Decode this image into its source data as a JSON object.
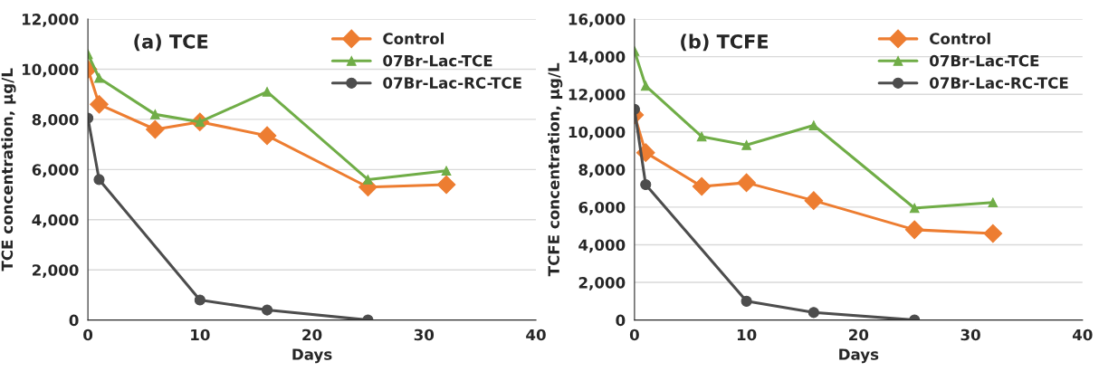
{
  "chart_data": [
    {
      "type": "line",
      "title": "(a) TCE",
      "xlabel": "Days",
      "ylabel": "TCE concentration, µg/L",
      "xlim": [
        0,
        40
      ],
      "xticks": [
        0,
        10,
        20,
        30,
        40
      ],
      "ylim": [
        0,
        12000
      ],
      "yticks": [
        {
          "value": 0,
          "label": "0"
        },
        {
          "value": 2000,
          "label": "2,000"
        },
        {
          "value": 4000,
          "label": "4,000"
        },
        {
          "value": 6000,
          "label": "6,000"
        },
        {
          "value": 8000,
          "label": "8,000"
        },
        {
          "value": 10000,
          "label": "10,000"
        },
        {
          "value": 12000,
          "label": "12,000"
        }
      ],
      "grid": "y",
      "legend": "top right",
      "line_style": "solid",
      "series": [
        {
          "name": "Control",
          "color": "#ed7d31",
          "marker": "diamond",
          "x": [
            0,
            1,
            6,
            10,
            16,
            25,
            32
          ],
          "values": [
            10000,
            8600,
            7600,
            7900,
            7350,
            5300,
            5400
          ]
        },
        {
          "name": "07Br-Lac-TCE",
          "color": "#70ad47",
          "marker": "triangle",
          "x": [
            0,
            1,
            6,
            10,
            16,
            25,
            32
          ],
          "values": [
            10600,
            9650,
            8200,
            7900,
            9100,
            5600,
            5950
          ]
        },
        {
          "name": "07Br-Lac-RC-TCE",
          "color": "#4d4d4d",
          "marker": "circle",
          "x": [
            0,
            1,
            10,
            16,
            25
          ],
          "values": [
            8050,
            5600,
            800,
            400,
            0
          ]
        }
      ]
    },
    {
      "type": "line",
      "title": "(b) TCFE",
      "xlabel": "Days",
      "ylabel": "TCFE concentration, µg/L",
      "xlim": [
        0,
        40
      ],
      "xticks": [
        0,
        10,
        20,
        30,
        40
      ],
      "ylim": [
        0,
        16000
      ],
      "yticks": [
        {
          "value": 0,
          "label": "0"
        },
        {
          "value": 2000,
          "label": "2,000"
        },
        {
          "value": 4000,
          "label": "4,000"
        },
        {
          "value": 6000,
          "label": "6,000"
        },
        {
          "value": 8000,
          "label": "8,000"
        },
        {
          "value": 10000,
          "label": "10,000"
        },
        {
          "value": 12000,
          "label": "12,000"
        },
        {
          "value": 14000,
          "label": "14,000"
        },
        {
          "value": 16000,
          "label": "16,000"
        }
      ],
      "grid": "y",
      "legend": "top right",
      "line_style": "solid",
      "series": [
        {
          "name": "Control",
          "color": "#ed7d31",
          "marker": "diamond",
          "x": [
            0,
            1,
            6,
            10,
            16,
            25,
            32
          ],
          "values": [
            10900,
            8900,
            7100,
            7300,
            6350,
            4800,
            4600
          ]
        },
        {
          "name": "07Br-Lac-TCE",
          "color": "#70ad47",
          "marker": "triangle",
          "x": [
            0,
            1,
            6,
            10,
            16,
            25,
            32
          ],
          "values": [
            14300,
            12450,
            9750,
            9300,
            10350,
            5950,
            6250
          ]
        },
        {
          "name": "07Br-Lac-RC-TCE",
          "color": "#4d4d4d",
          "marker": "circle",
          "x": [
            0,
            1,
            10,
            16,
            25
          ],
          "values": [
            11200,
            7200,
            1000,
            400,
            0
          ]
        }
      ]
    }
  ]
}
